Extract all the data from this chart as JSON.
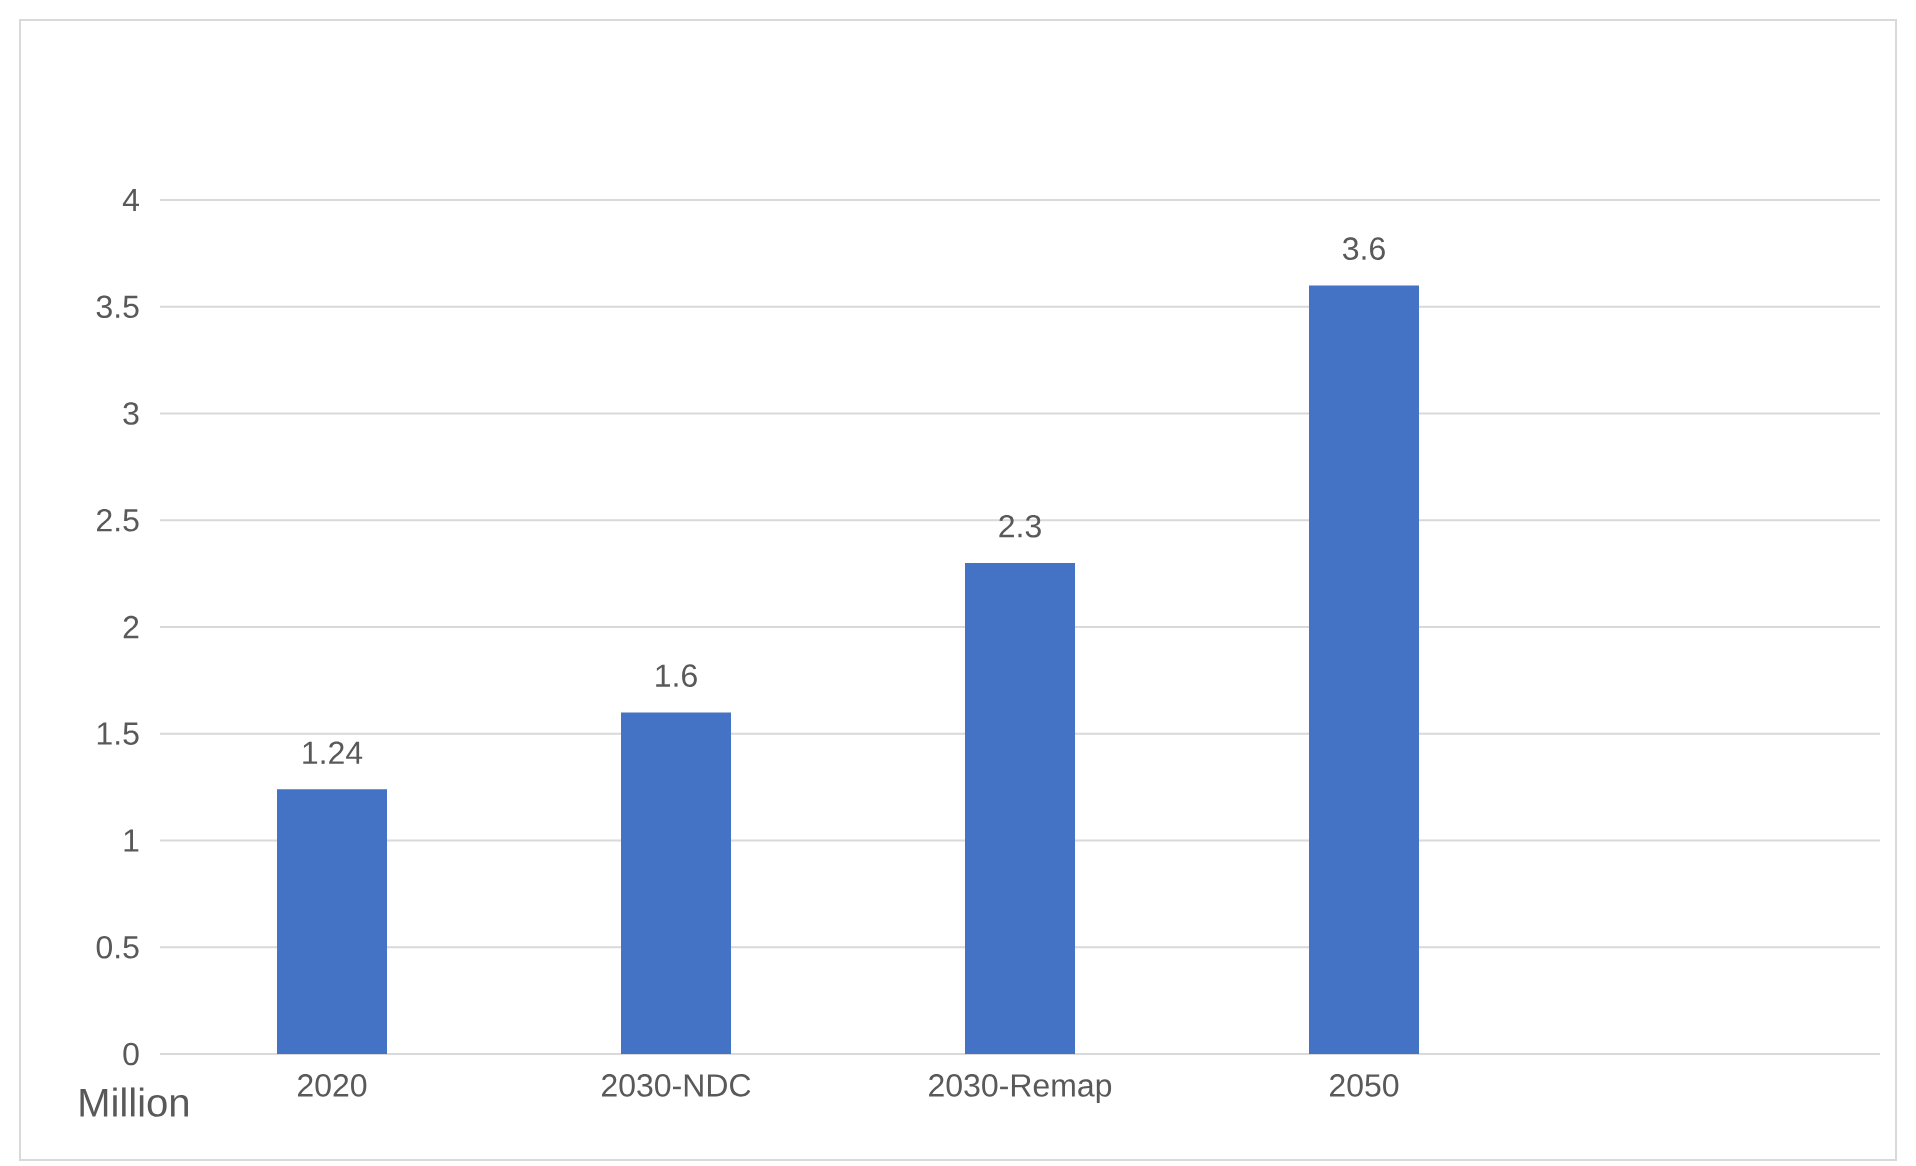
{
  "chart_data": {
    "type": "bar",
    "ylabel": "Million",
    "categories": [
      "2020",
      "2030-NDC",
      "2030-Remap",
      "2050",
      null
    ],
    "values": [
      1.24,
      1.6,
      2.3,
      3.6,
      null
    ],
    "color": "#4472c4",
    "ylim": [
      0,
      4
    ],
    "yticks": [
      0,
      0.5,
      1,
      1.5,
      2,
      2.5,
      3,
      3.5,
      4
    ],
    "grid": "y",
    "data_labels": true
  }
}
